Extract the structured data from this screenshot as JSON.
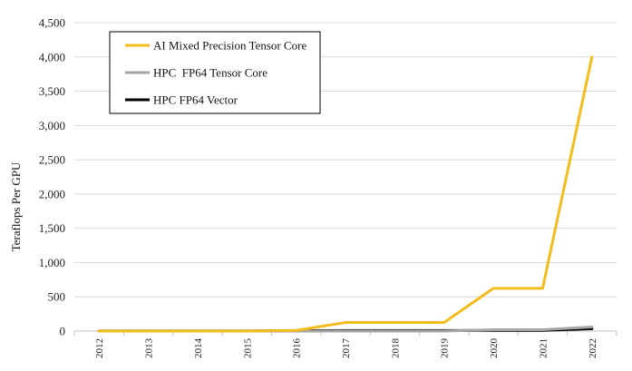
{
  "chart_data": {
    "type": "line",
    "title": "",
    "xlabel": "",
    "ylabel": "Teraflops Per GPU",
    "x": [
      "2012",
      "2013",
      "2014",
      "2015",
      "2016",
      "2017",
      "2018",
      "2019",
      "2020",
      "2021",
      "2022"
    ],
    "ylim": [
      0,
      4500
    ],
    "yticks": [
      0,
      500,
      1000,
      1500,
      2000,
      2500,
      3000,
      3500,
      4000,
      4500
    ],
    "ytick_labels": [
      "0",
      "500",
      "1,000",
      "1,500",
      "2,000",
      "2,500",
      "3,000",
      "3,500",
      "4,000",
      "4,500"
    ],
    "grid": "horizontal",
    "legend_position": "top-left",
    "series": [
      {
        "name": "AI Mixed Precision Tensor Core",
        "color": "#F2BC1B",
        "values": [
          0,
          0,
          0,
          0,
          10,
          125,
          125,
          125,
          624,
          624,
          4000
        ]
      },
      {
        "name": "HPC  FP64 Tensor Core",
        "color": "#A6A6A6",
        "values": [
          0,
          0,
          0,
          0,
          0,
          0,
          0,
          0,
          19.5,
          19.5,
          60
        ]
      },
      {
        "name": "HPC FP64 Vector",
        "color": "#000000",
        "values": [
          1,
          1.5,
          1.5,
          1.5,
          5,
          8,
          8,
          8,
          9.7,
          9.7,
          34
        ]
      }
    ]
  }
}
